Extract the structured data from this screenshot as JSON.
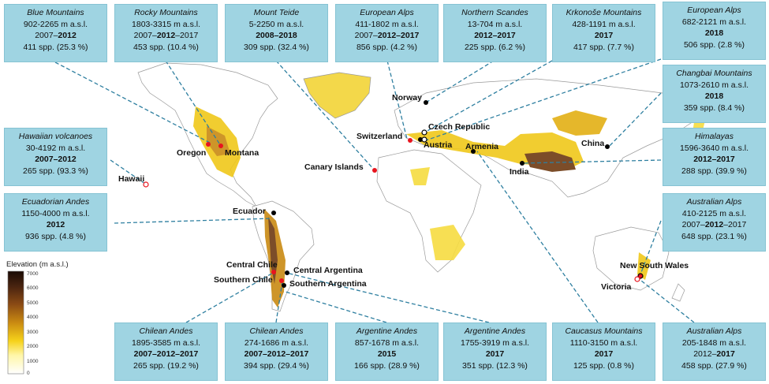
{
  "boxes": [
    {
      "title": "Blue Mountains",
      "elev": "902-2265 m a.s.l.",
      "year_pre": "2007–",
      "year_bold": "2012",
      "year_post": "",
      "spp": "411 spp. (25.3 %)"
    },
    {
      "title": "Rocky Mountains",
      "elev": "1803-3315 m a.s.l.",
      "year_pre": "2007–",
      "year_bold": "2012",
      "year_post": "–2017",
      "spp": "453 spp. (10.4 %)"
    },
    {
      "title": "Mount Teide",
      "elev": "5-2250 m a.s.l.",
      "year_pre": "",
      "year_bold": "2008–2018",
      "year_post": "",
      "spp": "309 spp. (32.4 %)"
    },
    {
      "title": "European Alps",
      "elev": "411-1802 m a.s.l.",
      "year_pre": "2007–",
      "year_bold": "2012–2017",
      "year_post": "",
      "spp": "856 spp. (4.2 %)"
    },
    {
      "title": "Northern Scandes",
      "elev": "13-704 m a.s.l.",
      "year_pre": "",
      "year_bold": "2012–2017",
      "year_post": "",
      "spp": "225 spp. (6.2 %)"
    },
    {
      "title": "Krkonoše Mountains",
      "elev": "428-1191 m a.s.l.",
      "year_pre": "",
      "year_bold": "2017",
      "year_post": "",
      "spp": "417 spp. (7.7 %)"
    },
    {
      "title": "European Alps",
      "elev": "682-2121 m a.s.l.",
      "year_pre": "",
      "year_bold": "2018",
      "year_post": "",
      "spp": "506 spp. (2.8 %)"
    },
    {
      "title": "Changbai Mountains",
      "elev": "1073-2610 m a.s.l.",
      "year_pre": "",
      "year_bold": "2018",
      "year_post": "",
      "spp": "359 spp. (8.4 %)"
    },
    {
      "title": "Himalayas",
      "elev": "1596-3640 m a.s.l.",
      "year_pre": "",
      "year_bold": "2012–2017",
      "year_post": "",
      "spp": "288 spp. (39.9 %)"
    },
    {
      "title": "Australian Alps",
      "elev": "410-2125 m a.s.l.",
      "year_pre": "2007–",
      "year_bold": "2012",
      "year_post": "–2017",
      "spp": "648 spp. (23.1 %)"
    },
    {
      "title": "Australian Alps",
      "elev": "205-1848 m a.s.l.",
      "year_pre": "2012–",
      "year_bold": "2017",
      "year_post": "",
      "spp": "458 spp. (27.9 %)"
    },
    {
      "title": "Caucasus Mountains",
      "elev": "1110-3150 m a.s.l.",
      "year_pre": "",
      "year_bold": "2017",
      "year_post": "",
      "spp": "125 spp. (0.8 %)"
    },
    {
      "title": "Argentine Andes",
      "elev": "1755-3919 m a.s.l.",
      "year_pre": "",
      "year_bold": "2017",
      "year_post": "",
      "spp": "351 spp. (12.3 %)"
    },
    {
      "title": "Argentine Andes",
      "elev": "857-1678 m a.s.l.",
      "year_pre": "",
      "year_bold": "2015",
      "year_post": "",
      "spp": "166 spp. (28.9 %)"
    },
    {
      "title": "Chilean Andes",
      "elev": "274-1686 m a.s.l.",
      "year_pre": "",
      "year_bold": "2007–2012–2017",
      "year_post": "",
      "spp": "394 spp. (29.4 %)"
    },
    {
      "title": "Chilean Andes",
      "elev": "1895-3585 m a.s.l.",
      "year_pre": "",
      "year_bold": "2007–2012–2017",
      "year_post": "",
      "spp": "265 spp. (19.2 %)"
    },
    {
      "title": "Ecuadorian Andes",
      "elev": "1150-4000 m a.s.l.",
      "year_pre": "",
      "year_bold": "2012",
      "year_post": "",
      "spp": "936 spp. (4.8 %)"
    },
    {
      "title": "Hawaiian volcanoes",
      "elev": "30-4192 m a.s.l.",
      "year_pre": "",
      "year_bold": "2007–2012",
      "year_post": "",
      "spp": "265 spp. (93.3 %)"
    }
  ],
  "places": [
    "Norway",
    "Czech Republic",
    "Switzerland",
    "Austria",
    "Armenia",
    "China",
    "India",
    "Oregon",
    "Montana",
    "Canary Islands",
    "Hawaii",
    "Ecuador",
    "Central Chile",
    "Central Argentina",
    "Southern Chile",
    "Southern Argentina",
    "New South Wales",
    "Victoria"
  ],
  "legend": {
    "title": "Elevation (m a.s.l.)",
    "ticks": [
      "7000",
      "6000",
      "5000",
      "4000",
      "3000",
      "2000",
      "1000",
      "0"
    ]
  },
  "colors": {
    "box_fill": "#9fd4e2",
    "leader_line": "#2e7fa0",
    "site_red": "#e8141e",
    "site_black": "#000000"
  }
}
